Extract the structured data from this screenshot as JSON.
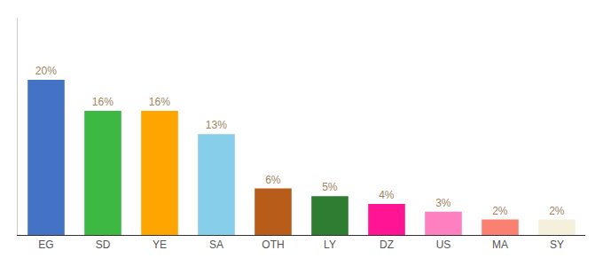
{
  "chart_data": {
    "type": "bar",
    "categories": [
      "EG",
      "SD",
      "YE",
      "SA",
      "OTH",
      "LY",
      "DZ",
      "US",
      "MA",
      "SY"
    ],
    "values": [
      20,
      16,
      16,
      13,
      6,
      5,
      4,
      3,
      2,
      2
    ],
    "value_labels": [
      "20%",
      "16%",
      "16%",
      "13%",
      "6%",
      "5%",
      "4%",
      "3%",
      "2%",
      "2%"
    ],
    "colors": [
      "#4472C4",
      "#3CB843",
      "#FFA500",
      "#87CEEB",
      "#B85C1A",
      "#2E7D32",
      "#FF1493",
      "#FF80C0",
      "#FA8072",
      "#F5F0DC"
    ],
    "ylim": [
      0,
      28
    ],
    "data_labels": true,
    "tick_labels": "x",
    "grid": false
  }
}
